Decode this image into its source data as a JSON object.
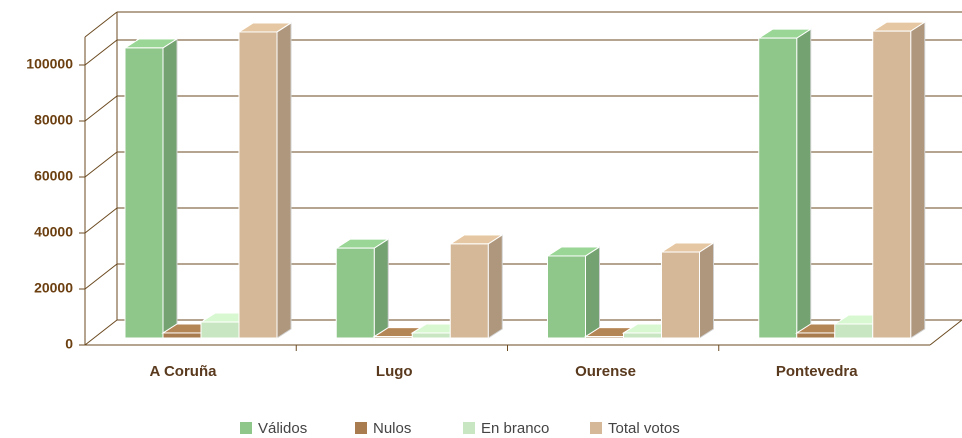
{
  "chart_data": {
    "type": "bar3d",
    "categories": [
      "A Coruña",
      "Lugo",
      "Ourense",
      "Pontevedra"
    ],
    "series": [
      {
        "name": "Válidos",
        "color": "#8fc68a",
        "values": [
          103600,
          32100,
          29300,
          107100
        ]
      },
      {
        "name": "Nulos",
        "color": "#a87c4f",
        "values": [
          1800,
          500,
          500,
          1800
        ]
      },
      {
        "name": "En branco",
        "color": "#c8e6c2",
        "values": [
          5700,
          1800,
          1800,
          5000
        ]
      },
      {
        "name": "Total votos",
        "color": "#d4b897",
        "values": [
          109300,
          33600,
          30700,
          109600
        ]
      }
    ],
    "ylim": [
      0,
      110000
    ],
    "yticks": [
      0,
      20000,
      40000,
      60000,
      80000,
      100000
    ],
    "grid": true
  }
}
